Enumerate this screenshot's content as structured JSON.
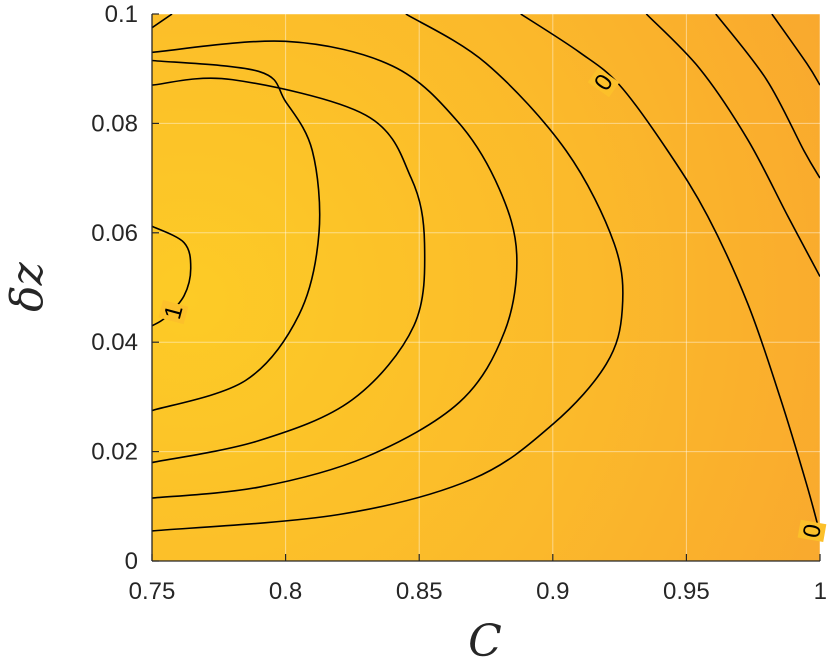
{
  "chart_data": {
    "type": "contour",
    "xlabel": "C",
    "ylabel": "δz",
    "xlim": [
      0.75,
      1.0
    ],
    "ylim": [
      0,
      0.1
    ],
    "xticks": [
      "0.75",
      "0.8",
      "0.85",
      "0.9",
      "0.95",
      "1"
    ],
    "yticks": [
      "0",
      "0.02",
      "0.04",
      "0.06",
      "0.08",
      "0.1"
    ],
    "grid": true,
    "colormap": {
      "light": "#FDCB26",
      "dark": "#F9A430"
    },
    "contour_color": "#000000",
    "contours": [
      {
        "label": "1",
        "points": [
          [
            0.75,
            0.0612
          ],
          [
            0.762,
            0.0582
          ],
          [
            0.7645,
            0.0535
          ],
          [
            0.762,
            0.0485
          ],
          [
            0.755,
            0.0445
          ],
          [
            0.75,
            0.043
          ]
        ]
      },
      {
        "points": [
          [
            0.7575,
            0.1
          ],
          [
            0.75,
            0.0975
          ]
        ]
      },
      {
        "points": [
          [
            0.75,
            0.0915
          ],
          [
            0.79,
            0.0895
          ],
          [
            0.8,
            0.084
          ],
          [
            0.81,
            0.075
          ],
          [
            0.8125,
            0.06
          ],
          [
            0.805,
            0.045
          ],
          [
            0.785,
            0.033
          ],
          [
            0.75,
            0.0275
          ]
        ]
      },
      {
        "points": [
          [
            0.75,
            0.087
          ],
          [
            0.78,
            0.088
          ],
          [
            0.83,
            0.0815
          ],
          [
            0.847,
            0.07
          ],
          [
            0.852,
            0.058
          ],
          [
            0.848,
            0.043
          ],
          [
            0.825,
            0.0295
          ],
          [
            0.79,
            0.022
          ],
          [
            0.75,
            0.018
          ]
        ]
      },
      {
        "points": [
          [
            0.75,
            0.093
          ],
          [
            0.8,
            0.095
          ],
          [
            0.84,
            0.0905
          ],
          [
            0.865,
            0.08
          ],
          [
            0.88,
            0.068
          ],
          [
            0.8865,
            0.056
          ],
          [
            0.882,
            0.042
          ],
          [
            0.865,
            0.029
          ],
          [
            0.83,
            0.019
          ],
          [
            0.79,
            0.0135
          ],
          [
            0.75,
            0.0115
          ]
        ]
      },
      {
        "points": [
          [
            0.845,
            0.1
          ],
          [
            0.875,
            0.091
          ],
          [
            0.905,
            0.075
          ],
          [
            0.923,
            0.058
          ],
          [
            0.926,
            0.046
          ],
          [
            0.92,
            0.036
          ],
          [
            0.9,
            0.025
          ],
          [
            0.87,
            0.015
          ],
          [
            0.82,
            0.0085
          ],
          [
            0.75,
            0.0055
          ]
        ]
      },
      {
        "label": "0",
        "points": [
          [
            0.888,
            0.1
          ],
          [
            0.91,
            0.093
          ],
          [
            0.925,
            0.087
          ],
          [
            0.943,
            0.075
          ],
          [
            0.958,
            0.063
          ],
          [
            0.973,
            0.047
          ],
          [
            0.985,
            0.03
          ],
          [
            0.995,
            0.014
          ],
          [
            1.0,
            0.005
          ]
        ]
      },
      {
        "points": [
          [
            0.935,
            0.1
          ],
          [
            0.955,
            0.09
          ],
          [
            0.973,
            0.077
          ],
          [
            0.988,
            0.063
          ],
          [
            1.0,
            0.052
          ]
        ]
      },
      {
        "points": [
          [
            0.961,
            0.1
          ],
          [
            0.98,
            0.088
          ],
          [
            0.994,
            0.075
          ],
          [
            1.0,
            0.07
          ]
        ]
      },
      {
        "points": [
          [
            0.982,
            0.1
          ],
          [
            0.995,
            0.091
          ],
          [
            1.0,
            0.087
          ]
        ]
      }
    ],
    "contour_labels": [
      {
        "text": "1",
        "x": 0.758,
        "y": 0.0455,
        "angle": -75
      },
      {
        "text": "0",
        "x": 0.919,
        "y": 0.0875,
        "angle": -55
      },
      {
        "text": "0",
        "x": 0.997,
        "y": 0.0055,
        "angle": -80
      }
    ]
  }
}
